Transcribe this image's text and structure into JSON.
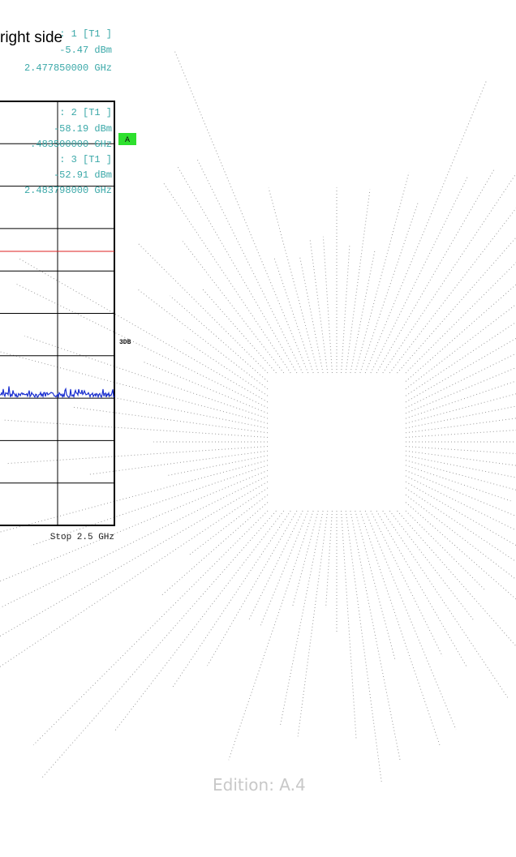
{
  "header": {
    "title": "right side"
  },
  "markers": [
    {
      "label": ": 1 [T1 ]",
      "level": "-5.47 dBm",
      "frequency": "2.477850000 GHz"
    },
    {
      "label": ": 2 [T1 ]",
      "level": "-58.19 dBm",
      "frequency": ".483500000 GHz"
    },
    {
      "label": ": 3 [T1 ]",
      "level": "-52.91 dBm",
      "frequency": "2.483798000 GHz"
    }
  ],
  "side_labels": {
    "trace": "A",
    "mode": "3DB"
  },
  "plot": {
    "stop": "Stop 2.5 GHz"
  },
  "footer": {
    "edition": "Edition: A.4"
  }
}
